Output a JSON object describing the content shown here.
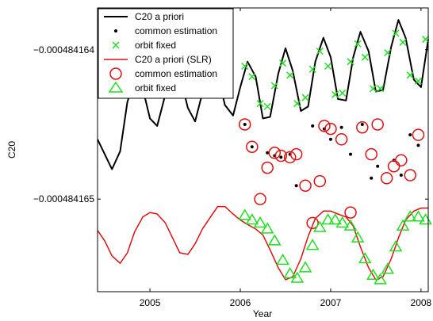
{
  "chart_data": {
    "type": "line",
    "xlabel": "Year",
    "ylabel": "C20",
    "xlim": [
      2004.42,
      2008.08
    ],
    "ylim": [
      -0.00048416562,
      -0.00048416372
    ],
    "xticks": [
      {
        "value": 2005,
        "label": "2005"
      },
      {
        "value": 2006,
        "label": "2006"
      },
      {
        "value": 2007,
        "label": "2007"
      },
      {
        "value": 2008,
        "label": "2008"
      }
    ],
    "yticks": [
      {
        "value": -0.000484164,
        "label": "−0.000484164"
      },
      {
        "value": -0.000484165,
        "label": "−0.000484165"
      }
    ],
    "legend_position": "top-left",
    "colors": {
      "black": "#000000",
      "green": "#22dd22",
      "red": "#dd1111"
    },
    "series": [
      {
        "name": "C20 a priori",
        "kind": "line",
        "color": "#000000",
        "x": [
          2004.42,
          2004.5,
          2004.58,
          2004.67,
          2004.75,
          2004.83,
          2004.92,
          2005.0,
          2005.08,
          2005.17,
          2005.25,
          2005.33,
          2005.42,
          2005.5,
          2005.58,
          2005.67,
          2005.75,
          2005.83,
          2005.92,
          2006.0,
          2006.08,
          2006.17,
          2006.25,
          2006.33,
          2006.42,
          2006.5,
          2006.58,
          2006.67,
          2006.75,
          2006.83,
          2006.92,
          2007.0,
          2007.08,
          2007.17,
          2007.25,
          2007.33,
          2007.42,
          2007.5,
          2007.58,
          2007.67,
          2007.75,
          2007.83,
          2007.92,
          2008.0,
          2008.08
        ],
        "y": [
          -0.0004841646,
          -0.0004841647,
          -0.0004841648,
          -0.00048416468,
          -0.00048416435,
          -0.0004841642,
          -0.00048416426,
          -0.00048416446,
          -0.00048416451,
          -0.0004841643,
          -0.00048416413,
          -0.00048416417,
          -0.00048416439,
          -0.00048416448,
          -0.00048416429,
          -0.00048416411,
          -0.00048416416,
          -0.00048416437,
          -0.00048416444,
          -0.00048416425,
          -0.00048416408,
          -0.00048416418,
          -0.00048416446,
          -0.00048416445,
          -0.00048416416,
          -0.00048416399,
          -0.00048416414,
          -0.00048416441,
          -0.00048416438,
          -0.00048416408,
          -0.00048416392,
          -0.00048416405,
          -0.00048416433,
          -0.00048416434,
          -0.00048416405,
          -0.00048416388,
          -0.00048416401,
          -0.00048416428,
          -0.00048416427,
          -0.00048416398,
          -0.0004841638,
          -0.00048416392,
          -0.0004841642,
          -0.00048416425,
          -0.00048416393
        ]
      },
      {
        "name": "common estimation",
        "kind": "dot",
        "color": "#000000",
        "x": [
          2006.05,
          2006.13,
          2006.3,
          2006.38,
          2006.45,
          2006.55,
          2006.62,
          2006.8,
          2006.93,
          2007.0,
          2007.12,
          2007.22,
          2007.35,
          2007.45,
          2007.52,
          2007.7,
          2007.78,
          2007.88,
          2007.97
        ],
        "y": [
          -0.0004841645,
          -0.00048416465,
          -0.00048416469,
          -0.00048416471,
          -0.00048416472,
          -0.0004841647,
          -0.00048416491,
          -0.00048416451,
          -0.00048416453,
          -0.0004841646,
          -0.00048416452,
          -0.0004841647,
          -0.0004841645,
          -0.00048416486,
          -0.00048416478,
          -0.00048416474,
          -0.00048416484,
          -0.00048416457,
          -0.00048416464
        ]
      },
      {
        "name": "orbit fixed",
        "kind": "x-marker",
        "color": "#22dd22",
        "x": [
          2006.05,
          2006.13,
          2006.22,
          2006.3,
          2006.38,
          2006.47,
          2006.55,
          2006.63,
          2006.72,
          2006.8,
          2006.88,
          2006.97,
          2007.05,
          2007.13,
          2007.22,
          2007.3,
          2007.38,
          2007.47,
          2007.55,
          2007.63,
          2007.72,
          2007.8,
          2007.88,
          2007.97,
          2008.05
        ],
        "y": [
          -0.00048416411,
          -0.00048416418,
          -0.00048416436,
          -0.00048416438,
          -0.00048416424,
          -0.00048416409,
          -0.00048416417,
          -0.00048416436,
          -0.00048416432,
          -0.00048416413,
          -0.00048416401,
          -0.00048416411,
          -0.0004841643,
          -0.00048416429,
          -0.00048416408,
          -0.00048416396,
          -0.00048416405,
          -0.00048416426,
          -0.00048416426,
          -0.00048416402,
          -0.00048416389,
          -0.00048416395,
          -0.00048416417,
          -0.00048416421,
          -0.00048416393
        ]
      },
      {
        "name": "C20 a priori (SLR)",
        "kind": "line",
        "color": "#dd1111",
        "x": [
          2004.42,
          2004.5,
          2004.58,
          2004.67,
          2004.75,
          2004.83,
          2004.92,
          2005.0,
          2005.08,
          2005.17,
          2005.25,
          2005.33,
          2005.42,
          2005.5,
          2005.58,
          2005.67,
          2005.75,
          2005.83,
          2005.92,
          2006.0,
          2006.08,
          2006.17,
          2006.25,
          2006.33,
          2006.42,
          2006.5,
          2006.58,
          2006.67,
          2006.75,
          2006.83,
          2006.92,
          2007.0,
          2007.08,
          2007.17,
          2007.25,
          2007.33,
          2007.42,
          2007.5,
          2007.58,
          2007.67,
          2007.75,
          2007.83,
          2007.92,
          2008.0,
          2008.08
        ],
        "y": [
          -0.00048416521,
          -0.00048416528,
          -0.00048416538,
          -0.00048416543,
          -0.00048416536,
          -0.00048416522,
          -0.00048416512,
          -0.00048416509,
          -0.0004841651,
          -0.00048416516,
          -0.00048416526,
          -0.00048416536,
          -0.00048416537,
          -0.0004841653,
          -0.0004841652,
          -0.00048416512,
          -0.00048416505,
          -0.00048416505,
          -0.0004841651,
          -0.00048416514,
          -0.00048416517,
          -0.0004841652,
          -0.00048416524,
          -0.00048416534,
          -0.00048416546,
          -0.00048416554,
          -0.00048416552,
          -0.0004841654,
          -0.00048416525,
          -0.00048416513,
          -0.00048416508,
          -0.00048416508,
          -0.0004841651,
          -0.00048416512,
          -0.00048416518,
          -0.00048416532,
          -0.00048416546,
          -0.00048416554,
          -0.00048416552,
          -0.0004841654,
          -0.00048416526,
          -0.00048416514,
          -0.00048416508,
          -0.00048416506,
          -0.00048416506
        ]
      },
      {
        "name": "common estimation",
        "kind": "circle-marker",
        "color": "#dd1111",
        "x": [
          2006.05,
          2006.13,
          2006.22,
          2006.3,
          2006.38,
          2006.45,
          2006.55,
          2006.62,
          2006.72,
          2006.8,
          2006.88,
          2006.93,
          2007.0,
          2007.12,
          2007.22,
          2007.35,
          2007.45,
          2007.52,
          2007.62,
          2007.7,
          2007.78,
          2007.88,
          2007.97
        ],
        "y": [
          -0.0004841645,
          -0.00048416465,
          -0.000484165,
          -0.00048416479,
          -0.00048416469,
          -0.00048416471,
          -0.00048416472,
          -0.0004841647,
          -0.00048416491,
          -0.00048416516,
          -0.00048416488,
          -0.00048416451,
          -0.00048416453,
          -0.0004841646,
          -0.00048416509,
          -0.00048416452,
          -0.0004841647,
          -0.0004841645,
          -0.00048416486,
          -0.00048416478,
          -0.00048416474,
          -0.00048416484,
          -0.00048416457
        ]
      },
      {
        "name": "orbit fixed",
        "kind": "triangle-marker",
        "color": "#22dd22",
        "x": [
          2006.05,
          2006.13,
          2006.22,
          2006.3,
          2006.38,
          2006.47,
          2006.55,
          2006.63,
          2006.72,
          2006.8,
          2006.88,
          2006.97,
          2007.05,
          2007.13,
          2007.22,
          2007.3,
          2007.38,
          2007.47,
          2007.55,
          2007.63,
          2007.72,
          2007.8,
          2007.88,
          2007.97,
          2008.05
        ],
        "y": [
          -0.00048416511,
          -0.00048416514,
          -0.00048416516,
          -0.0004841652,
          -0.00048416528,
          -0.00048416541,
          -0.0004841655,
          -0.00048416553,
          -0.00048416546,
          -0.00048416531,
          -0.00048416519,
          -0.00048416514,
          -0.00048416514,
          -0.00048416516,
          -0.00048416518,
          -0.00048416526,
          -0.0004841654,
          -0.00048416551,
          -0.00048416554,
          -0.00048416547,
          -0.00048416532,
          -0.00048416518,
          -0.00048416512,
          -0.00048416512,
          -0.00048416514
        ]
      }
    ]
  }
}
